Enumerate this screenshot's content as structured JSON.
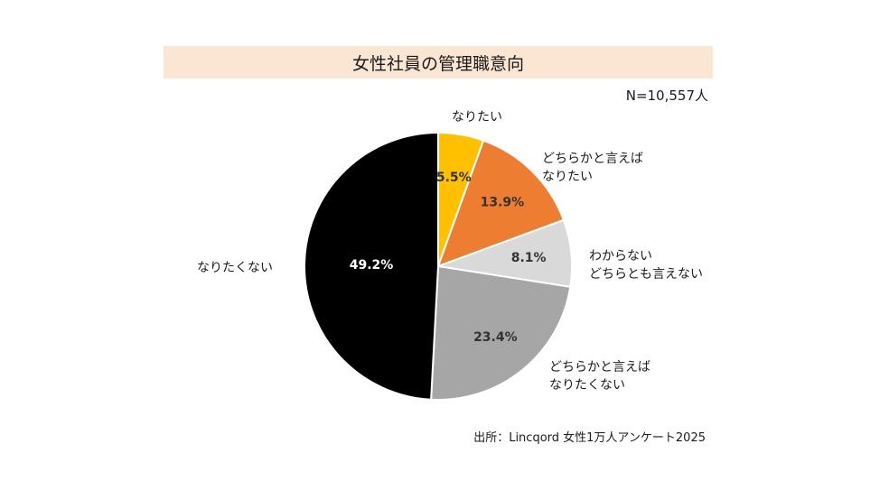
{
  "chart_data": {
    "type": "pie",
    "title": "女性社員の管理職意向",
    "sample_size": "N=10,557人",
    "categories": [
      "なりたい",
      "どちらかと言えば\nなりたい",
      "わからない\nどちらとも言えない",
      "どちらかと言えば\nなりたくない",
      "なりたくない"
    ],
    "values": [
      5.5,
      13.9,
      8.1,
      23.4,
      49.2
    ],
    "value_labels": [
      "5.5%",
      "13.9%",
      "8.1%",
      "23.4%",
      "49.2%"
    ],
    "colors": [
      "#ffc000",
      "#ed7d31",
      "#d9d9d9",
      "#a6a6a6",
      "#000000"
    ],
    "value_label_colors": [
      "#333333",
      "#333333",
      "#333333",
      "#333333",
      "#ffffff"
    ],
    "start_angle": "12 o'clock",
    "direction": "clockwise",
    "source": "出所：Lincqord 女性1万人アンケート2025"
  }
}
